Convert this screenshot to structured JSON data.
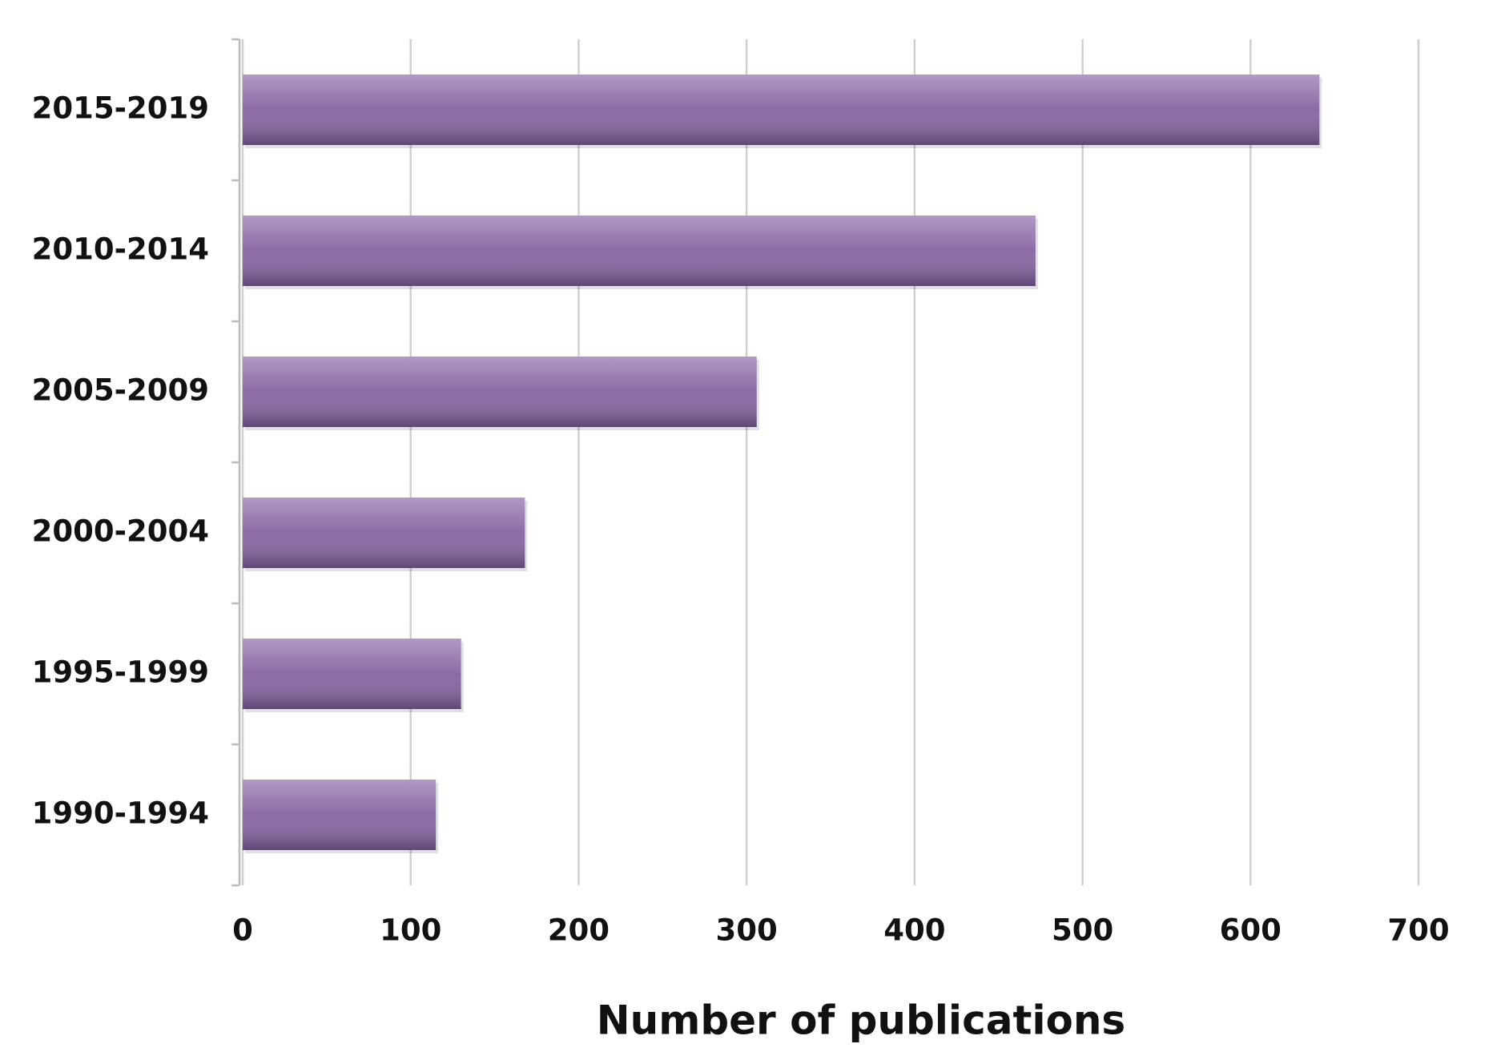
{
  "chart_data": {
    "type": "bar",
    "orientation": "horizontal",
    "x_label": "Number of publications",
    "categories": [
      "2015-2019",
      "2010-2014",
      "2005-2009",
      "2000-2004",
      "1995-1999",
      "1990-1994"
    ],
    "values": [
      641,
      472,
      306,
      168,
      130,
      115
    ],
    "color": "#8664a3",
    "xlim": [
      0,
      700
    ],
    "xticks": [
      0,
      100,
      200,
      300,
      400,
      500,
      600,
      700
    ],
    "grid": true
  }
}
